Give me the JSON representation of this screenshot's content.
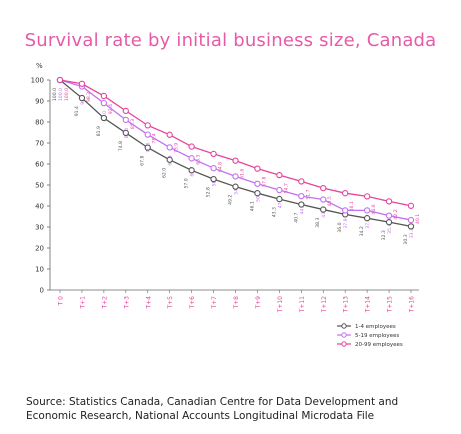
{
  "chart_data": {
    "type": "line",
    "title": "Survival rate by initial business size, Canada",
    "ylabel": "%",
    "xlabel": "",
    "ylim": [
      0,
      100
    ],
    "yticks": [
      0,
      10,
      20,
      30,
      40,
      50,
      60,
      70,
      80,
      90,
      100
    ],
    "categories": [
      "T 0",
      "T+1",
      "T+2",
      "T+3",
      "T+4",
      "T+5",
      "T+6",
      "T+7",
      "T+8",
      "T+9",
      "T+10",
      "T+11",
      "T+12",
      "T+13",
      "T+14",
      "T+15",
      "T+16"
    ],
    "grid": false,
    "legend_position": "bottom-right",
    "series": [
      {
        "name": "1-4 employees",
        "color": "#555555",
        "values": [
          100.0,
          91.4,
          81.9,
          74.8,
          67.8,
          62.0,
          57.0,
          52.8,
          49.2,
          46.1,
          43.3,
          40.7,
          38.3,
          36.0,
          34.2,
          32.3,
          30.3
        ],
        "labels": [
          "100.0",
          "91.4",
          "81.9",
          "74.8",
          "67.8",
          "62.0",
          "57.0",
          "52.8",
          "49.2",
          "46.1",
          "43.3",
          "40.7",
          "38.3",
          "36.0",
          "34.2",
          "32.3",
          "30.3"
        ]
      },
      {
        "name": "5-19 employees",
        "color": "#c46ff0",
        "values": [
          100.0,
          96.9,
          89.0,
          81.0,
          74.0,
          67.9,
          62.7,
          58.0,
          54.1,
          50.6,
          47.6,
          44.7,
          43.1,
          37.9,
          37.9,
          35.4,
          33.3
        ],
        "labels": [
          "100.0",
          "96.9",
          "89.0",
          "81.0",
          "74.0",
          "67.9",
          "62.7",
          "58.0",
          "54.1",
          "50.6",
          "47.6",
          "44.7",
          "43.1",
          "37.9",
          "37.9",
          "35.4",
          "33.3"
        ]
      },
      {
        "name": "20-99 employees",
        "color": "#e6449a",
        "values": [
          100.0,
          98.2,
          92.4,
          85.3,
          78.4,
          73.9,
          68.3,
          64.8,
          61.6,
          57.8,
          54.7,
          51.7,
          48.5,
          46.1,
          44.6,
          42.2,
          40.1
        ],
        "labels": [
          "100.0",
          "98.2",
          "92.4",
          "85.3",
          "78.4",
          "73.9",
          "68.3",
          "64.8",
          "61.6",
          "57.8",
          "54.7",
          "51.7",
          "48.5",
          "46.1",
          "44.6",
          "42.2",
          "40.1"
        ]
      }
    ]
  },
  "source": "Source: Statistics Canada, Canadian Centre for Data Development and Economic Research, National Accounts Longitudinal Microdata File"
}
